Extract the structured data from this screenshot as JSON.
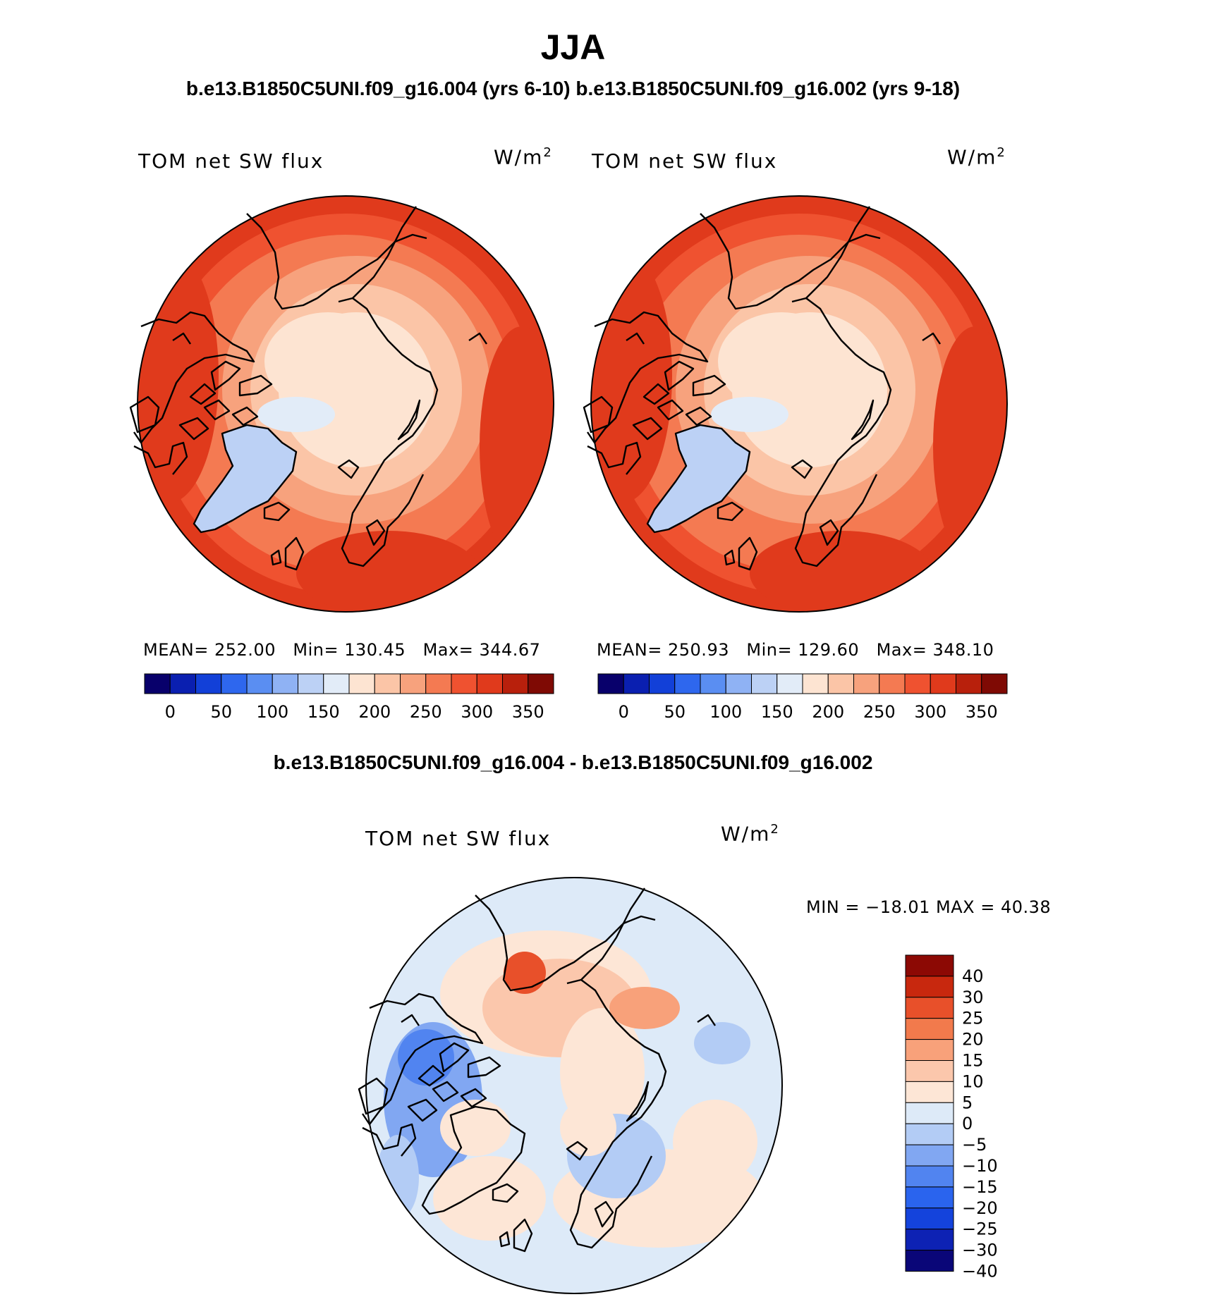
{
  "figure": {
    "season": "JJA",
    "case_header": "b.e13.B1850C5UNI.f09_g16.004 (yrs 6-10) b.e13.B1850C5UNI.f09_g16.002 (yrs 9-18)",
    "diff_header": "b.e13.B1850C5UNI.f09_g16.004 - b.e13.B1850C5UNI.f09_g16.002"
  },
  "panels": [
    {
      "variable": "TOM net SW flux",
      "units": "W/m",
      "units_exp": "2",
      "mean_label": "MEAN=",
      "mean": "252.00",
      "min_label": "Min=",
      "min": "130.45",
      "max_label": "Max=",
      "max": "344.67"
    },
    {
      "variable": "TOM net SW flux",
      "units": "W/m",
      "units_exp": "2",
      "mean_label": "MEAN=",
      "mean": "250.93",
      "min_label": "Min=",
      "min": "129.60",
      "max_label": "Max=",
      "max": "348.10"
    }
  ],
  "diff_panel": {
    "variable": "TOM net SW flux",
    "units": "W/m",
    "units_exp": "2",
    "minmax": "MIN = −18.01 MAX =   40.38"
  },
  "chart_data": [
    {
      "type": "heatmap",
      "projection": "north polar stereographic",
      "title": "TOM net SW flux",
      "units": "W/m2",
      "stats": {
        "mean": 252.0,
        "min": 130.45,
        "max": 344.67
      },
      "contour_levels": [
        0,
        25,
        50,
        75,
        100,
        125,
        150,
        175,
        200,
        225,
        250,
        275,
        300,
        325,
        350
      ],
      "colorbar_tick_labels": [
        "0",
        "50",
        "100",
        "150",
        "200",
        "250",
        "300",
        "350"
      ],
      "colorbar_orientation": "horizontal"
    },
    {
      "type": "heatmap",
      "projection": "north polar stereographic",
      "title": "TOM net SW flux",
      "units": "W/m2",
      "stats": {
        "mean": 250.93,
        "min": 129.6,
        "max": 348.1
      },
      "contour_levels": [
        0,
        25,
        50,
        75,
        100,
        125,
        150,
        175,
        200,
        225,
        250,
        275,
        300,
        325,
        350
      ],
      "colorbar_tick_labels": [
        "0",
        "50",
        "100",
        "150",
        "200",
        "250",
        "300",
        "350"
      ],
      "colorbar_orientation": "horizontal"
    },
    {
      "type": "heatmap",
      "projection": "north polar stereographic",
      "title": "TOM net SW flux",
      "units": "W/m2",
      "stats": {
        "min": -18.01,
        "max": 40.38
      },
      "contour_levels": [
        -40,
        -30,
        -25,
        -20,
        -15,
        -10,
        -5,
        0,
        5,
        10,
        15,
        20,
        25,
        30,
        40
      ],
      "colorbar_tick_labels": [
        "40",
        "30",
        "25",
        "20",
        "15",
        "10",
        "5",
        "0",
        "−5",
        "−10",
        "−15",
        "−20",
        "−25",
        "−30",
        "−40"
      ],
      "colorbar_orientation": "vertical"
    }
  ],
  "colors": {
    "abs_scale": [
      "#08006b",
      "#0a1fb0",
      "#1240d8",
      "#2e67ee",
      "#5a8ef2",
      "#8fb2f4",
      "#bcd1f5",
      "#e2ecf8",
      "#fde4d2",
      "#fbc5a7",
      "#f7a27d",
      "#f47a52",
      "#ef5230",
      "#e03a1c",
      "#b8200c",
      "#7f0a04"
    ],
    "diff_scale": [
      "#0a0678",
      "#0d22b4",
      "#1443dc",
      "#2a64ee",
      "#5184f0",
      "#81a7f2",
      "#b3ccf5",
      "#ddeaf8",
      "#fde6d6",
      "#fbc7ac",
      "#f8a17a",
      "#f27a4c",
      "#e8502a",
      "#c8280e",
      "#8c0904"
    ]
  }
}
